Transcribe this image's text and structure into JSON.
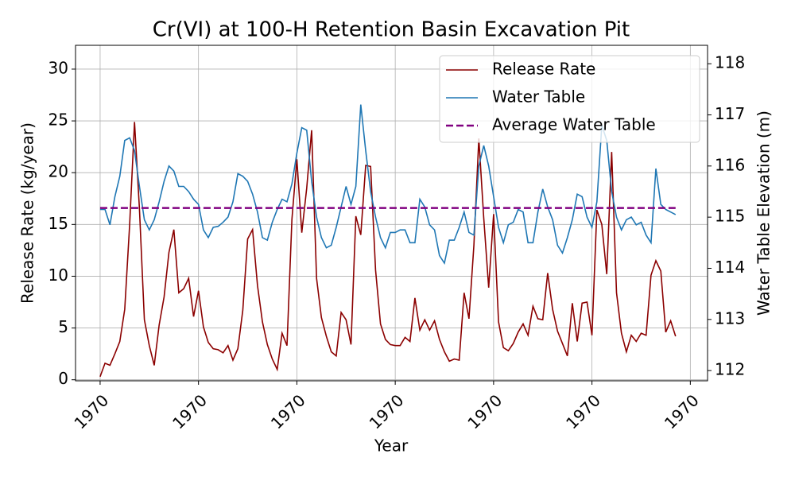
{
  "chart_data": {
    "type": "line",
    "title": "Cr(VI) at 100-H Retention Basin Excavation Pit",
    "x_label": "Year",
    "y_label": "Release Rate (kg/year)",
    "y2_label": "Water Table Elevation (m)",
    "x": [
      0,
      1,
      2,
      3,
      4,
      5,
      6,
      7,
      8,
      9,
      10,
      11,
      12,
      13,
      14,
      15,
      16,
      17,
      18,
      19,
      20,
      21,
      22,
      23,
      24,
      25,
      26,
      27,
      28,
      29,
      30,
      31,
      32,
      33,
      34,
      35,
      36,
      37,
      38,
      39,
      40,
      41,
      42,
      43,
      44,
      45,
      46,
      47,
      48,
      49,
      50,
      51,
      52,
      53,
      54,
      55,
      56,
      57,
      58,
      59,
      60,
      61,
      62,
      63,
      64,
      65,
      66,
      67,
      68,
      69,
      70,
      71,
      72,
      73,
      74,
      75,
      76,
      77,
      78,
      79,
      80,
      81,
      82,
      83,
      84,
      85,
      86,
      87,
      88,
      89,
      90,
      91,
      92,
      93,
      94,
      95,
      96,
      97,
      98,
      99,
      100,
      101,
      102,
      103,
      104,
      105,
      106,
      107,
      108,
      109,
      110,
      111,
      112,
      113,
      114,
      115,
      116,
      117
    ],
    "series": [
      {
        "name": "Release Rate",
        "color": "#8b0000",
        "values": [
          0.3,
          1.6,
          1.4,
          2.5,
          3.7,
          6.8,
          15,
          24.9,
          16.5,
          5.8,
          3.3,
          1.4,
          5.3,
          8,
          12.3,
          14.5,
          8.4,
          8.8,
          9.8,
          6.1,
          8.6,
          5.1,
          3.6,
          3,
          2.9,
          2.6,
          3.3,
          1.9,
          3,
          6.7,
          13.6,
          14.5,
          9.1,
          5.6,
          3.4,
          2,
          1,
          4.5,
          3.3,
          15.5,
          21.3,
          14.2,
          18.5,
          24.1,
          9.8,
          6,
          4.2,
          2.7,
          2.3,
          6.5,
          5.8,
          3.4,
          15.8,
          14,
          20.7,
          20.6,
          10.6,
          5.4,
          3.9,
          3.4,
          3.3,
          3.3,
          4.1,
          3.7,
          7.9,
          4.8,
          5.8,
          4.8,
          5.7,
          3.9,
          2.7,
          1.8,
          2,
          1.9,
          8.4,
          5.9,
          13,
          23.3,
          15.6,
          8.9,
          16,
          5.6,
          3.1,
          2.8,
          3.5,
          4.6,
          5.4,
          4.3,
          7.1,
          5.9,
          5.8,
          10.3,
          6.8,
          4.7,
          3.5,
          2.3,
          7.4,
          3.7,
          7.4,
          7.5,
          4.3,
          16.4,
          15,
          10.2,
          22,
          8.4,
          4.5,
          2.7,
          4.3,
          3.7,
          4.5,
          4.3,
          10.1,
          11.5,
          10.5,
          4.6,
          5.7,
          4.2
        ]
      },
      {
        "name": "Water Table",
        "color": "#1f77b4",
        "axis": "y2",
        "values": [
          115.15,
          115.15,
          114.85,
          115.4,
          115.8,
          116.5,
          116.55,
          116.3,
          115.6,
          114.95,
          114.75,
          114.95,
          115.3,
          115.7,
          116.0,
          115.9,
          115.6,
          115.6,
          115.5,
          115.35,
          115.25,
          114.75,
          114.6,
          114.8,
          114.82,
          114.9,
          115.0,
          115.3,
          115.85,
          115.8,
          115.7,
          115.45,
          115.1,
          114.6,
          114.55,
          114.9,
          115.15,
          115.35,
          115.3,
          115.65,
          116.25,
          116.75,
          116.7,
          115.7,
          115.0,
          114.6,
          114.4,
          114.45,
          114.8,
          115.2,
          115.6,
          115.25,
          115.6,
          117.2,
          116.3,
          115.5,
          115.0,
          114.6,
          114.4,
          114.7,
          114.7,
          114.75,
          114.75,
          114.5,
          114.5,
          115.35,
          115.2,
          114.85,
          114.75,
          114.25,
          114.1,
          114.55,
          114.55,
          114.8,
          115.1,
          114.7,
          114.65,
          116.0,
          116.4,
          116.0,
          115.4,
          114.8,
          114.5,
          114.85,
          114.9,
          115.15,
          115.1,
          114.5,
          114.5,
          115.1,
          115.55,
          115.2,
          114.95,
          114.45,
          114.3,
          114.6,
          114.95,
          115.45,
          115.4,
          115.0,
          114.8,
          115.3,
          116.8,
          116.5,
          115.5,
          115.0,
          114.75,
          114.95,
          115.0,
          114.85,
          114.9,
          114.65,
          114.5,
          115.95,
          115.25,
          115.15,
          115.1,
          115.05
        ]
      },
      {
        "name": "Average Water Table",
        "color": "#800080",
        "axis": "y2",
        "dashed": true,
        "value": 115.18
      }
    ],
    "xlim": [
      -5,
      123.5
    ],
    "xticks": [
      {
        "value": 0,
        "label": "1970"
      },
      {
        "value": 20,
        "label": "1970"
      },
      {
        "value": 40,
        "label": "1970"
      },
      {
        "value": 60,
        "label": "1970"
      },
      {
        "value": 80,
        "label": "1970"
      },
      {
        "value": 100,
        "label": "1970"
      },
      {
        "value": 120,
        "label": "1970"
      }
    ],
    "ylim": [
      -0.1,
      32.3
    ],
    "yticks": [
      0,
      5,
      10,
      15,
      20,
      25,
      30
    ],
    "y2lim": [
      111.8,
      118.36
    ],
    "y2ticks": [
      112,
      113,
      114,
      115,
      116,
      117,
      118
    ],
    "grid": true,
    "legend": "upper-right"
  }
}
